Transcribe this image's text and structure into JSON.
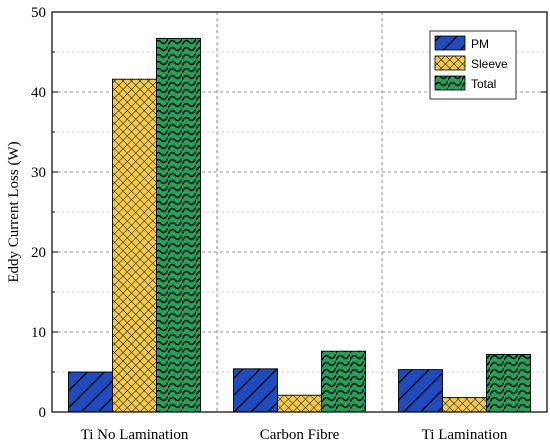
{
  "chart_data": {
    "type": "bar",
    "categories": [
      "Ti No Lamination",
      "Carbon Fibre",
      "Ti Lamination"
    ],
    "series": [
      {
        "name": "PM",
        "values": [
          5.0,
          5.4,
          5.3
        ],
        "color": "#1f4bbf",
        "pattern": "diagonal-stripes"
      },
      {
        "name": "Sleeve",
        "values": [
          41.6,
          2.1,
          1.8
        ],
        "color": "#f2c94c",
        "pattern": "crosshatch"
      },
      {
        "name": "Total",
        "values": [
          46.7,
          7.6,
          7.2
        ],
        "color": "#22a35a",
        "pattern": "wave"
      }
    ],
    "xlabel": "",
    "ylabel": "Eddy Current Loss (W)",
    "ylim": [
      0,
      50
    ],
    "yticks": [
      0,
      10,
      20,
      30,
      40,
      50
    ],
    "grid": true,
    "legend_position": "top-right"
  }
}
